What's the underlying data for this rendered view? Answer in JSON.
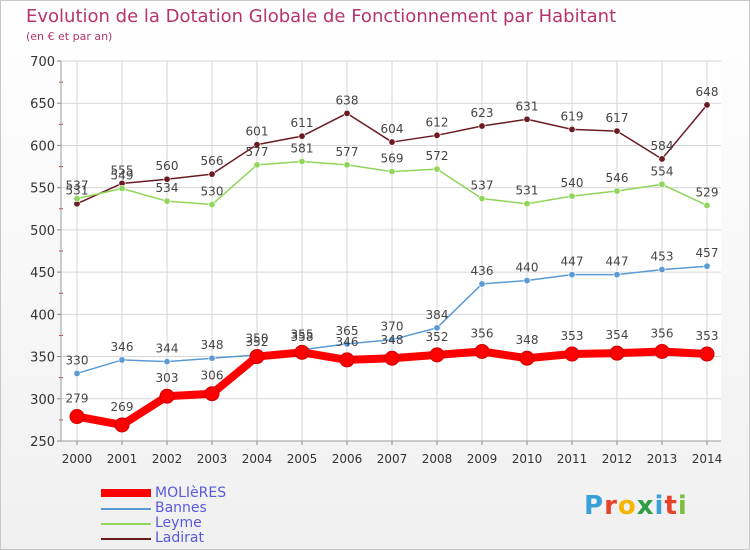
{
  "title": "Evolution de la Dotation Globale de Fonctionnement par Habitant",
  "subtitle": "(en € et par an)",
  "logo": {
    "text": "Proxiti",
    "colors": [
      "#3aa0d8",
      "#e8412c",
      "#f7b500",
      "#2f9e44",
      "#3aa0d8",
      "#e8412c",
      "#7fbf3f"
    ]
  },
  "chart_data": {
    "type": "line",
    "title": "Evolution de la Dotation Globale de Fonctionnement par Habitant",
    "subtitle": "(en € et par an)",
    "x": [
      "2000",
      "2001",
      "2002",
      "2003",
      "2004",
      "2005",
      "2006",
      "2007",
      "2008",
      "2009",
      "2010",
      "2011",
      "2012",
      "2013",
      "2014"
    ],
    "ylim": [
      250,
      700
    ],
    "yticks": [
      "250",
      "300",
      "350",
      "400",
      "450",
      "500",
      "550",
      "600",
      "650",
      "700"
    ],
    "grid": true,
    "series": [
      {
        "name": "MOLIèRES",
        "color": "#ff0000",
        "values": [
          279,
          269,
          303,
          306,
          350,
          355,
          346,
          348,
          352,
          356,
          348,
          353,
          354,
          356,
          353
        ]
      },
      {
        "name": "Bannes",
        "color": "#5b9bd5",
        "values": [
          330,
          346,
          344,
          348,
          352,
          358,
          365,
          370,
          384,
          436,
          440,
          447,
          447,
          453,
          457
        ]
      },
      {
        "name": "Leyme",
        "color": "#8fd65a",
        "values": [
          537,
          549,
          534,
          530,
          577,
          581,
          577,
          569,
          572,
          537,
          531,
          540,
          546,
          554,
          529
        ]
      },
      {
        "name": "Ladirat",
        "color": "#6b1a22",
        "values": [
          531,
          555,
          560,
          566,
          601,
          611,
          638,
          604,
          612,
          623,
          631,
          619,
          617,
          584,
          648
        ]
      }
    ]
  }
}
